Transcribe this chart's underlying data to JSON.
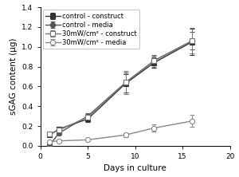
{
  "title": "",
  "xlabel": "Days in culture",
  "ylabel": "sGAG content (µg)",
  "xlim": [
    0,
    20
  ],
  "ylim": [
    0,
    1.4
  ],
  "yticks": [
    0.0,
    0.2,
    0.4,
    0.6,
    0.8,
    1.0,
    1.2,
    1.4
  ],
  "xticks": [
    0,
    5,
    10,
    15,
    20
  ],
  "series": [
    {
      "label": "control - construct",
      "x": [
        1,
        2,
        5,
        9,
        12,
        16
      ],
      "y": [
        0.11,
        0.17,
        0.27,
        0.63,
        0.84,
        1.05
      ],
      "yerr": [
        0.015,
        0.02,
        0.03,
        0.09,
        0.05,
        0.13
      ],
      "marker": "s",
      "fillstyle": "full",
      "color": "#333333",
      "linestyle": "-",
      "linewidth": 1.0,
      "markersize": 4.5
    },
    {
      "label": "control - media",
      "x": [
        1,
        2,
        5,
        9,
        12,
        16
      ],
      "y": [
        0.01,
        0.13,
        0.3,
        0.64,
        0.86,
        1.06
      ],
      "yerr": [
        0.005,
        0.02,
        0.03,
        0.1,
        0.05,
        0.09
      ],
      "marker": "o",
      "fillstyle": "full",
      "color": "#555555",
      "linestyle": "-",
      "linewidth": 1.0,
      "markersize": 4.5
    },
    {
      "label": "30mW/cm² - construct",
      "x": [
        1,
        2,
        5,
        9,
        12,
        16
      ],
      "y": [
        0.12,
        0.16,
        0.29,
        0.64,
        0.86,
        1.06
      ],
      "yerr": [
        0.01,
        0.02,
        0.035,
        0.12,
        0.06,
        0.13
      ],
      "marker": "s",
      "fillstyle": "none",
      "color": "#777777",
      "linestyle": "-",
      "linewidth": 1.0,
      "markersize": 4.5
    },
    {
      "label": "30mW/cm² - media",
      "x": [
        1,
        2,
        5,
        9,
        12,
        16
      ],
      "y": [
        0.04,
        0.05,
        0.06,
        0.11,
        0.18,
        0.25
      ],
      "yerr": [
        0.01,
        0.01,
        0.01,
        0.02,
        0.04,
        0.06
      ],
      "marker": "o",
      "fillstyle": "none",
      "color": "#888888",
      "linestyle": "-",
      "linewidth": 1.0,
      "markersize": 4.5
    }
  ],
  "legend_fontsize": 6.0,
  "axis_fontsize": 7.5,
  "tick_fontsize": 6.5,
  "background_color": "#ffffff"
}
